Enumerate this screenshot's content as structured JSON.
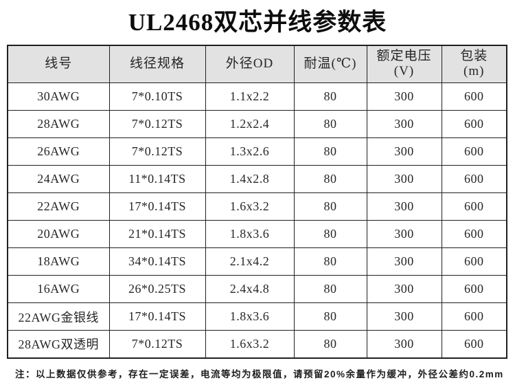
{
  "page": {
    "title": "UL2468双芯并线参数表"
  },
  "table": {
    "headers": [
      "线号",
      "线径规格",
      "外径OD",
      "耐温(℃)",
      "额定电压\n(V)",
      "包装\n(m)"
    ],
    "rows": [
      [
        "30AWG",
        "7*0.10TS",
        "1.1x2.2",
        "80",
        "300",
        "600"
      ],
      [
        "28AWG",
        "7*0.12TS",
        "1.2x2.4",
        "80",
        "300",
        "600"
      ],
      [
        "26AWG",
        "7*0.12TS",
        "1.3x2.6",
        "80",
        "300",
        "600"
      ],
      [
        "24AWG",
        "11*0.14TS",
        "1.4x2.8",
        "80",
        "300",
        "600"
      ],
      [
        "22AWG",
        "17*0.14TS",
        "1.6x3.2",
        "80",
        "300",
        "600"
      ],
      [
        "20AWG",
        "21*0.14TS",
        "1.8x3.6",
        "80",
        "300",
        "600"
      ],
      [
        "18AWG",
        "34*0.14TS",
        "2.1x4.2",
        "80",
        "300",
        "600"
      ],
      [
        "16AWG",
        "26*0.25TS",
        "2.4x4.8",
        "80",
        "300",
        "600"
      ],
      [
        "22AWG金银线",
        "17*0.14TS",
        "1.8x3.6",
        "80",
        "300",
        "600"
      ],
      [
        "28AWG双透明",
        "7*0.12TS",
        "1.6x3.2",
        "80",
        "300",
        "600"
      ]
    ]
  },
  "note": "注：以上数据仅供参考，存在一定误差，电流等均为极限值，请预留20%余量作为缓冲，外径公差约0.2mm",
  "colors": {
    "header_bg": "#e2e2e2",
    "border_color": "#1f1f1f",
    "text_color": "#262626",
    "page_bg": "#ffffff"
  }
}
